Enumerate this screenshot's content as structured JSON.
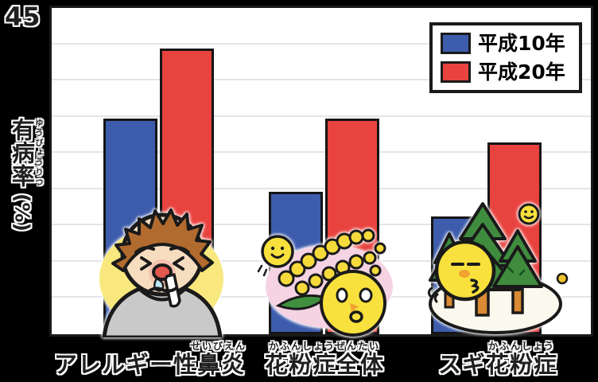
{
  "chart_data": {
    "type": "bar",
    "title": "",
    "categories": [
      "アレルギー性鼻炎",
      "花粉症全体",
      "スギ花粉症"
    ],
    "categories_furigana": [
      "せいびえん",
      "かふんしょうぜんたい",
      "かふんしょう"
    ],
    "series": [
      {
        "name": "平成10年",
        "color": "#3E5CAC",
        "values": [
          29.8,
          19.6,
          16.2
        ]
      },
      {
        "name": "平成20年",
        "color": "#E8433F",
        "values": [
          39.4,
          29.8,
          26.5
        ]
      }
    ],
    "xlabel": "",
    "ylabel": "有病率",
    "ylabel_furigana": "ゆうびょうりつ",
    "ylabel_unit": "(%)",
    "ylim": [
      0,
      45
    ],
    "ytick_step": 5,
    "ytick_labels": [
      "45"
    ],
    "grid": true,
    "legend_position": "top-right"
  },
  "illustrations": {
    "group1": "sick-boy-runny-nose",
    "group2": "ragweed-pollen-characters",
    "group3": "cedar-trees-pollen-character"
  },
  "colors": {
    "background": "#000000",
    "plot_background": "#FFFFFF",
    "gridline": "#E2E5EA",
    "axis_border": "#1A1A1A",
    "legend_background": "#FFFFFF"
  }
}
